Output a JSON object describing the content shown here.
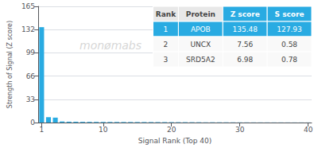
{
  "chart_data": {
    "type": "bar",
    "xlabel": "Signal Rank (Top 40)",
    "ylabel": "Strength of Signal (Z score)",
    "x": [
      1,
      2,
      3,
      4,
      5,
      6,
      7,
      8,
      9,
      10,
      11,
      12,
      13,
      14,
      15,
      16,
      17,
      18,
      19,
      20,
      21,
      22,
      23,
      24,
      25,
      26,
      27,
      28,
      29,
      30,
      31,
      32,
      33,
      34,
      35,
      36,
      37,
      38,
      39,
      40
    ],
    "values": [
      135.48,
      7.56,
      6.98,
      1.5,
      1.2,
      1.1,
      1.0,
      0.95,
      0.9,
      0.85,
      0.82,
      0.79,
      0.76,
      0.73,
      0.7,
      0.67,
      0.64,
      0.61,
      0.58,
      0.55,
      0.52,
      0.49,
      0.46,
      0.43,
      0.4,
      0.37,
      0.34,
      0.31,
      0.28,
      0.25,
      0.22,
      0.2,
      0.19,
      0.18,
      0.17,
      0.16,
      0.15,
      0.14,
      0.13,
      0.12
    ],
    "color": "#29abe2",
    "xlim": [
      0.5,
      40.5
    ],
    "xticks": [
      1,
      10,
      20,
      30,
      40
    ],
    "ylim": [
      0,
      165
    ],
    "yticks": [
      0,
      33,
      66,
      99,
      132,
      165
    ],
    "grid": true,
    "annotations": [
      "monømabs"
    ],
    "table": {
      "header": [
        "Rank",
        "Protein",
        "Z score",
        "S score"
      ],
      "rows": [
        [
          "1",
          "APOB",
          "135.48",
          "127.93"
        ],
        [
          "2",
          "UNCX",
          "7.56",
          "0.58"
        ],
        [
          "3",
          "SRD5A2",
          "6.98",
          "0.78"
        ]
      ]
    }
  }
}
